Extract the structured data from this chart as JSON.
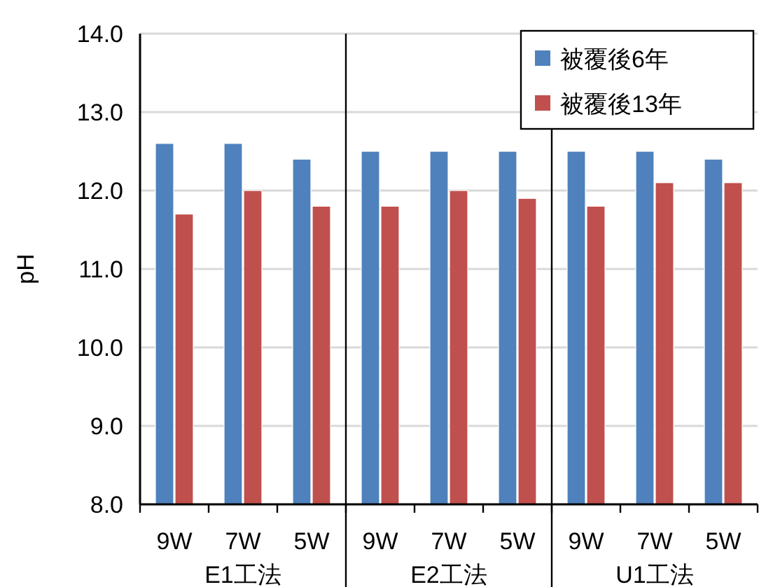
{
  "chart_data": {
    "type": "bar",
    "ylabel": "pH",
    "categories": [
      "9W",
      "7W",
      "5W",
      "9W",
      "7W",
      "5W",
      "9W",
      "7W",
      "5W"
    ],
    "series": [
      {
        "name": "被覆後6年",
        "color": "#4f81bd",
        "values": [
          12.6,
          12.6,
          12.4,
          12.5,
          12.5,
          12.5,
          12.5,
          12.5,
          12.4
        ]
      },
      {
        "name": "被覆後13年",
        "color": "#c0504d",
        "values": [
          11.7,
          12.0,
          11.8,
          11.8,
          12.0,
          11.9,
          11.8,
          12.1,
          12.1
        ]
      }
    ],
    "annotations": [
      "E1工法",
      "E2工法",
      "U1工法"
    ],
    "ylim": [
      8,
      14
    ],
    "yticks": [
      {
        "value": 8,
        "label": "8.0"
      },
      {
        "value": 9,
        "label": "9.0"
      },
      {
        "value": 10,
        "label": "10.0"
      },
      {
        "value": 11,
        "label": "11.0"
      },
      {
        "value": 12,
        "label": "12.0"
      },
      {
        "value": 13,
        "label": "13.0"
      },
      {
        "value": 14,
        "label": "14.0"
      }
    ],
    "grid": "y",
    "legend": "top right"
  }
}
